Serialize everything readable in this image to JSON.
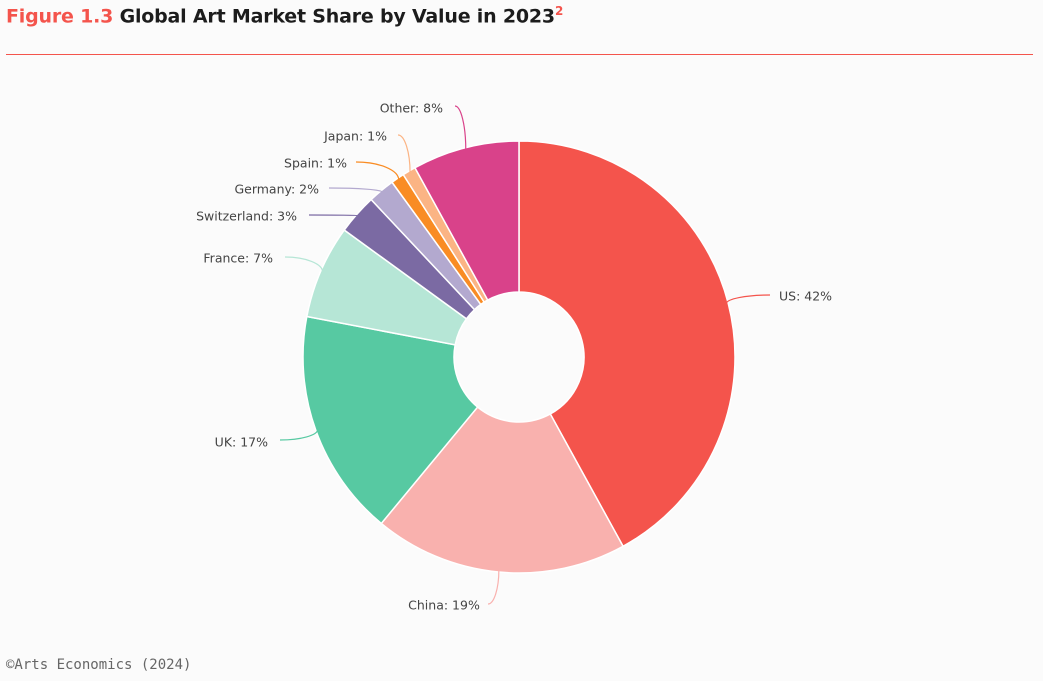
{
  "header": {
    "figure_number": "Figure 1.3",
    "title": "Global Art Market Share by Value in 2023",
    "footnote_marker": "2"
  },
  "credit": "©Arts Economics (2024)",
  "colors": {
    "accent": "#f4544c",
    "background": "#fbfbfb"
  },
  "chart_data": {
    "type": "pie",
    "style": "donut",
    "unit": "%",
    "start": "12 o'clock",
    "direction": "clockwise",
    "slices": [
      {
        "name": "US",
        "value": 42,
        "label": "US: 42%",
        "color": "#f4544c"
      },
      {
        "name": "China",
        "value": 19,
        "label": "China: 19%",
        "color": "#f9b1ae"
      },
      {
        "name": "UK",
        "value": 17,
        "label": "UK: 17%",
        "color": "#57c9a2"
      },
      {
        "name": "France",
        "value": 7,
        "label": "France: 7%",
        "color": "#b6e6d6"
      },
      {
        "name": "Switzerland",
        "value": 3,
        "label": "Switzerland: 3%",
        "color": "#7b6aa3"
      },
      {
        "name": "Germany",
        "value": 2,
        "label": "Germany: 2%",
        "color": "#b3a9cf"
      },
      {
        "name": "Spain",
        "value": 1,
        "label": "Spain: 1%",
        "color": "#f98c24"
      },
      {
        "name": "Japan",
        "value": 1,
        "label": "Japan: 1%",
        "color": "#fbb484"
      },
      {
        "name": "Other",
        "value": 8,
        "label": "Other: 8%",
        "color": "#d9428a"
      }
    ]
  }
}
